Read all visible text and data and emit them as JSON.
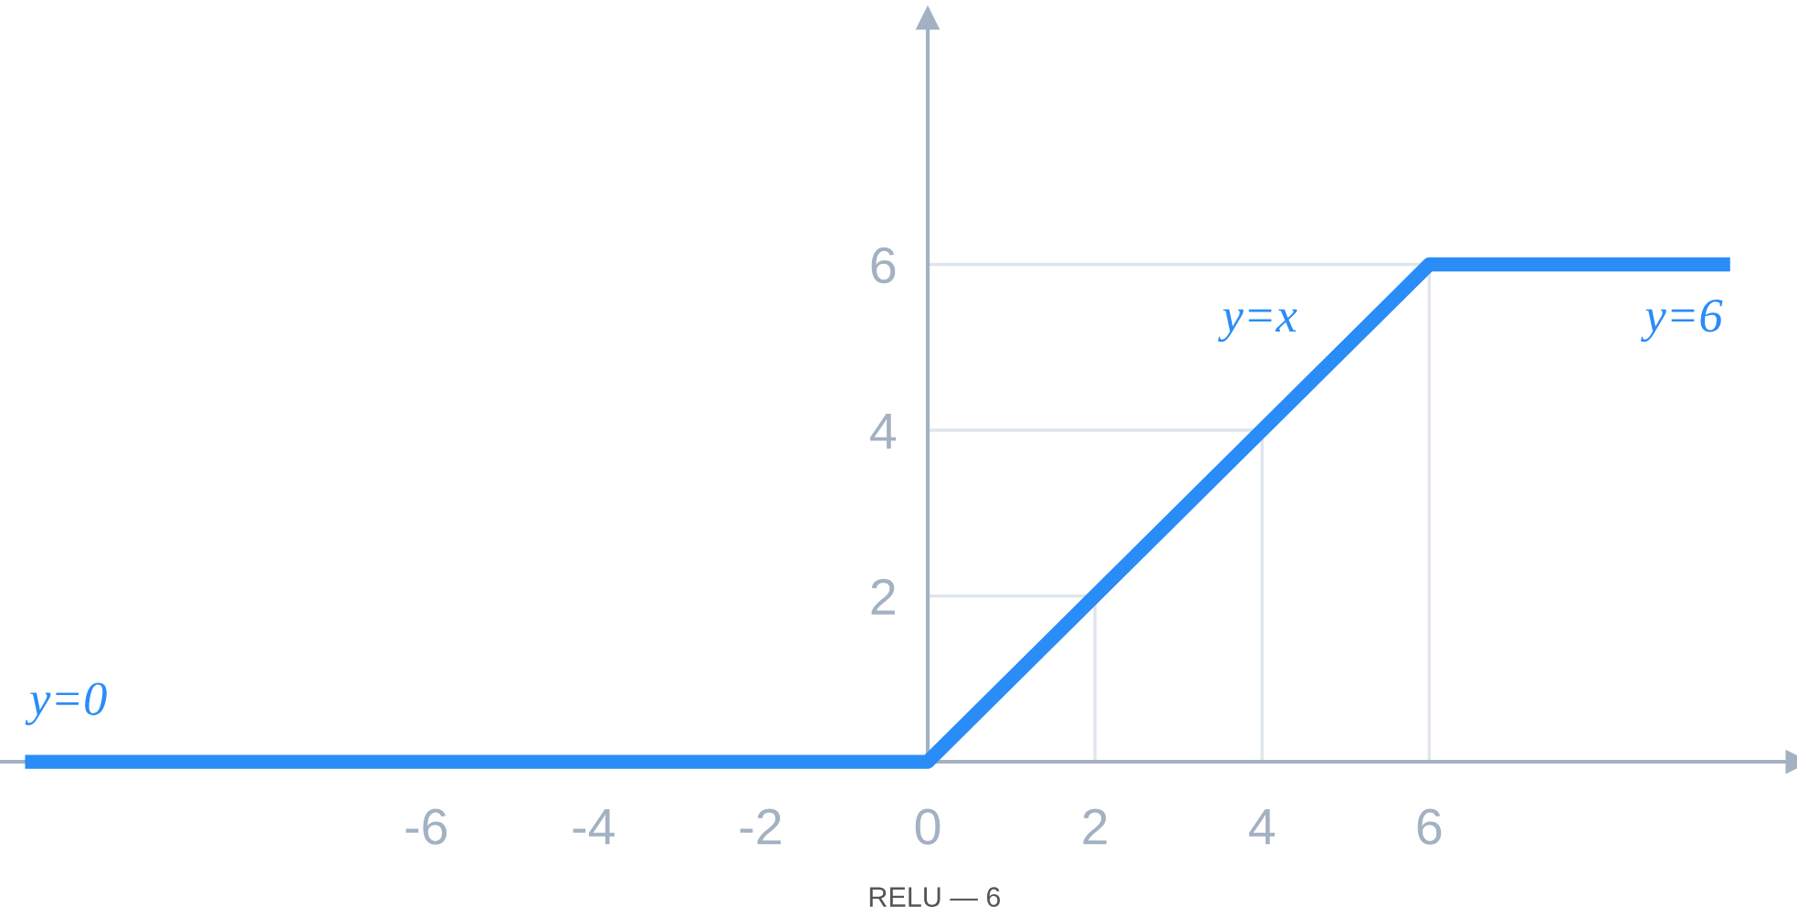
{
  "chart_data": {
    "type": "line",
    "x": [
      -10.8,
      0,
      6,
      9.6
    ],
    "series": [
      {
        "color": "#2a8cf7",
        "values": [
          0,
          0,
          6,
          6
        ]
      },
      {
        "color": "#dfe5ec",
        "x": [
          2,
          2
        ],
        "values": [
          0,
          2
        ]
      },
      {
        "color": "#dfe5ec",
        "x": [
          4,
          4
        ],
        "values": [
          0,
          4
        ]
      },
      {
        "color": "#dfe5ec",
        "x": [
          6,
          6
        ],
        "values": [
          0,
          6
        ]
      },
      {
        "color": "#dfe5ec",
        "x": [
          0,
          2
        ],
        "values": [
          2,
          2
        ]
      },
      {
        "color": "#dfe5ec",
        "x": [
          0,
          4
        ],
        "values": [
          4,
          4
        ]
      },
      {
        "color": "#dfe5ec",
        "x": [
          0,
          6
        ],
        "values": [
          6,
          6
        ]
      }
    ],
    "xlim": [
      -11.1,
      10.4
    ],
    "ylim": [
      0,
      8.97
    ],
    "xticks": [
      -6,
      -4,
      -2,
      0,
      2,
      4,
      6
    ],
    "yticks": [
      2,
      4,
      6
    ],
    "annotations": [
      "y=0",
      "y=x",
      "y=6",
      "RELU — 6"
    ]
  }
}
